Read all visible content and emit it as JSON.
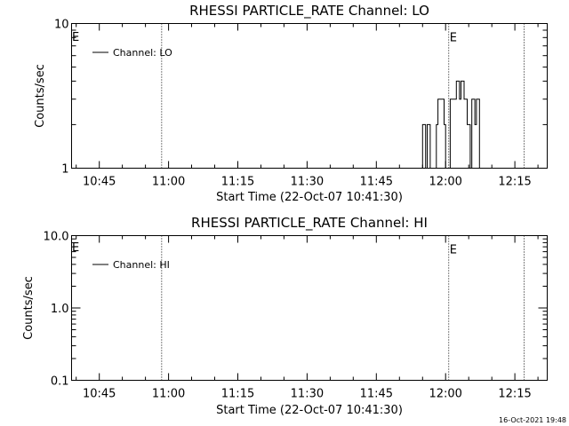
{
  "timestamp": "16-Oct-2021 19:48",
  "chart_data": [
    {
      "type": "line",
      "title": "RHESSI PARTICLE_RATE Channel: LO",
      "xlabel": "Start Time (22-Oct-07 10:41:30)",
      "ylabel": "Counts/sec",
      "xticks": [
        "10:45",
        "11:00",
        "11:15",
        "11:30",
        "11:45",
        "12:00",
        "12:15"
      ],
      "xlim": [
        "10:39",
        "12:22"
      ],
      "yscale": "log",
      "ylim": [
        1,
        10
      ],
      "yticks": [
        "1",
        "10"
      ],
      "legend": "top-left",
      "series": [
        {
          "name": "Channel: LO",
          "x": [
            "11:54:20",
            "11:54:40",
            "11:55:00",
            "11:55:20",
            "11:55:40",
            "11:56:00",
            "11:56:20",
            "11:56:40",
            "11:57:00",
            "11:57:20",
            "11:57:40",
            "11:58:00",
            "11:58:20",
            "11:58:40",
            "11:59:00",
            "11:59:20",
            "11:59:40",
            "12:00:00",
            "12:00:20",
            "12:00:40",
            "12:01:00",
            "12:01:20",
            "12:01:40",
            "12:02:00",
            "12:02:20",
            "12:02:40",
            "12:03:00",
            "12:03:20",
            "12:03:40",
            "12:04:00",
            "12:04:20",
            "12:04:40",
            "12:05:00",
            "12:05:20",
            "12:05:40",
            "12:06:00",
            "12:06:20",
            "12:06:40",
            "12:07:00",
            "12:07:20",
            "12:07:40"
          ],
          "y": [
            1,
            1,
            2,
            2,
            1,
            2,
            2,
            1,
            1,
            1,
            1,
            2,
            3,
            3,
            3,
            3,
            2,
            1,
            1,
            1,
            3,
            3,
            3,
            3,
            4,
            4,
            3,
            4,
            4,
            3,
            3,
            2,
            2,
            1,
            3,
            3,
            2,
            3,
            3,
            1,
            1
          ]
        }
      ],
      "markers": [
        {
          "time": "10:58:30",
          "label": ""
        },
        {
          "time": "12:00:40",
          "label": "E"
        },
        {
          "time": "12:17:00",
          "label": ""
        }
      ],
      "edge_label": "E"
    },
    {
      "type": "line",
      "title": "RHESSI PARTICLE_RATE Channel: HI",
      "xlabel": "Start Time (22-Oct-07 10:41:30)",
      "ylabel": "Counts/sec",
      "xticks": [
        "10:45",
        "11:00",
        "11:15",
        "11:30",
        "11:45",
        "12:00",
        "12:15"
      ],
      "xlim": [
        "10:39",
        "12:22"
      ],
      "yscale": "log",
      "ylim": [
        0.1,
        10
      ],
      "yticks": [
        "0.1",
        "1.0",
        "10.0"
      ],
      "legend": "top-left",
      "series": [
        {
          "name": "Channel: HI",
          "x": [],
          "y": []
        }
      ],
      "markers": [
        {
          "time": "10:58:30",
          "label": ""
        },
        {
          "time": "12:00:40",
          "label": "E"
        },
        {
          "time": "12:17:00",
          "label": ""
        }
      ],
      "edge_label": "E"
    }
  ]
}
